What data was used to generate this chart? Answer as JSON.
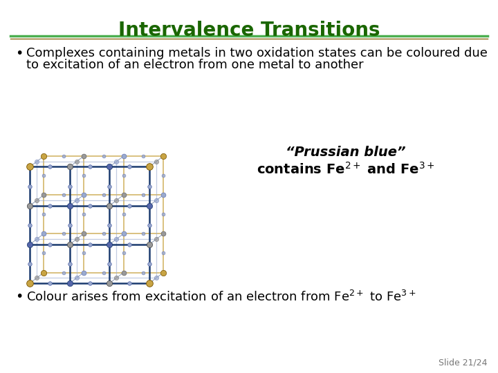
{
  "title": "Intervalence Transitions",
  "title_color": "#1a6600",
  "title_fontsize": 20,
  "bg_color": "#FFFFFF",
  "line_color_top": "#4CAF50",
  "line_color_bottom": "#8B6914",
  "bullet1_line1": "Complexes containing metals in two oxidation states can be coloured due",
  "bullet1_line2": "to excitation of an electron from one metal to another",
  "prussian_line1": "“Prussian blue”",
  "prussian_line2": "contains Fe",
  "prussian_fe2": "2+",
  "prussian_and": " and Fe",
  "prussian_fe3": "3+",
  "bullet2_main": "Colour arises from excitation of an electron from Fe",
  "bullet2_fe2": "2+",
  "bullet2_to": " to Fe",
  "bullet2_fe3": "3+",
  "slide_number": "Slide 21/24",
  "body_fontsize": 13,
  "annotation_fontsize": 14,
  "gold_color": "#C8A444",
  "dark_blue": "#1A3A6E",
  "blue_node": "#7788BB",
  "gray_node": "#999999",
  "light_blue": "#9AAACE",
  "mid_blue": "#5566AA"
}
